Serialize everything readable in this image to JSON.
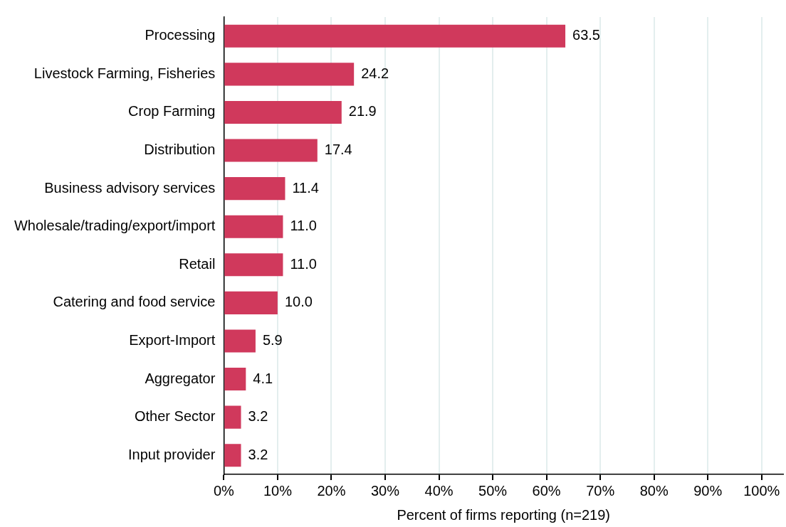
{
  "chart_data": {
    "type": "bar",
    "orientation": "horizontal",
    "xlabel": "Percent of firms reporting (n=219)",
    "categories": [
      "Processing",
      "Livestock Farming, Fisheries",
      "Crop Farming",
      "Distribution",
      "Business advisory services",
      "Wholesale/trading/export/import",
      "Retail",
      "Catering and food service",
      "Export-Import",
      "Aggregator",
      "Other Sector",
      "Input provider"
    ],
    "values": [
      63.5,
      24.2,
      21.9,
      17.4,
      11.4,
      11.0,
      11.0,
      10.0,
      5.9,
      4.1,
      3.2,
      3.2
    ],
    "value_labels": [
      "63.5",
      "24.2",
      "21.9",
      "17.4",
      "11.4",
      "11.0",
      "11.0",
      "10.0",
      "5.9",
      "4.1",
      "3.2",
      "3.2"
    ],
    "color": "#d0395c",
    "xlim": [
      0,
      104
    ],
    "xticks": [
      {
        "value": 0,
        "label": "0%"
      },
      {
        "value": 10,
        "label": "10%"
      },
      {
        "value": 20,
        "label": "20%"
      },
      {
        "value": 30,
        "label": "30%"
      },
      {
        "value": 40,
        "label": "40%"
      },
      {
        "value": 50,
        "label": "50%"
      },
      {
        "value": 60,
        "label": "60%"
      },
      {
        "value": 70,
        "label": "70%"
      },
      {
        "value": 80,
        "label": "80%"
      },
      {
        "value": 90,
        "label": "90%"
      },
      {
        "value": 100,
        "label": "100%"
      }
    ],
    "grid": "x",
    "legend": false
  }
}
